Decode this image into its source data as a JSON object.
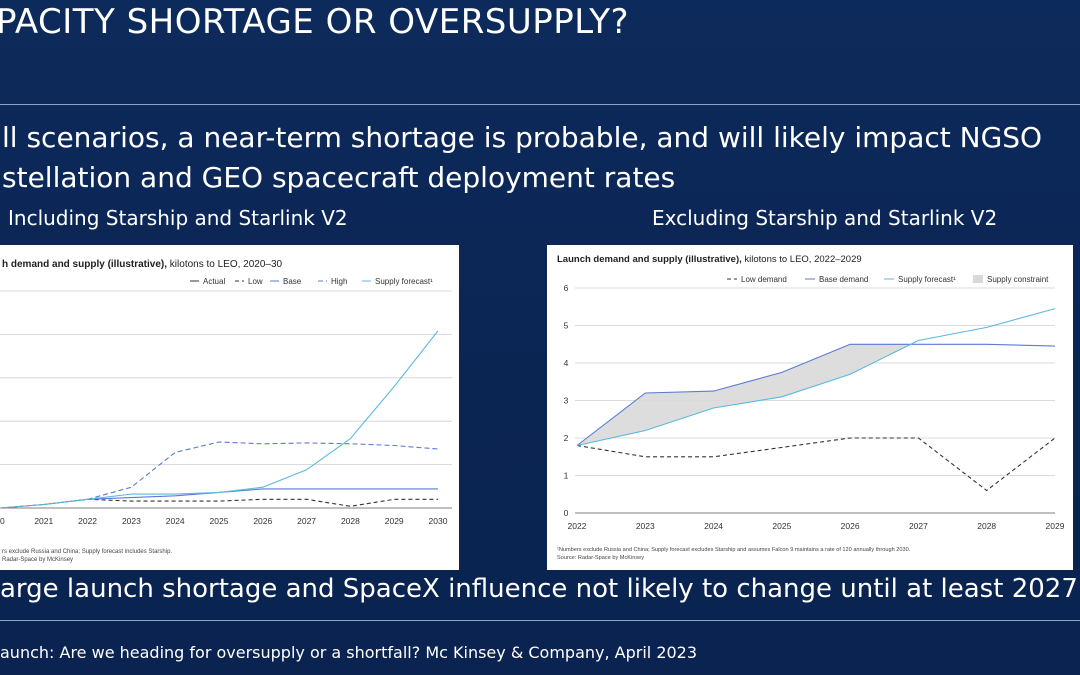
{
  "slide": {
    "title": "PACITY SHORTAGE OR OVERSUPPLY?",
    "subtitle_line1": "ll scenarios, a near-term shortage is probable, and will likely impact NGSO",
    "subtitle_line2": "stellation and GEO spacecraft deployment rates",
    "left_heading": "Including Starship and Starlink V2",
    "right_heading": "Excluding Starship and Starlink V2",
    "conclusion": "arge launch shortage and SpaceX influence not likely to change until at least 2027",
    "source": "aunch: Are we heading for oversupply or a shortfall? Mc Kinsey & Company, April 2023"
  },
  "chart_data": [
    {
      "type": "line",
      "title_bold": "h demand and supply (illustrative),",
      "title_rest": " kilotons to LEO, 2020–30",
      "legend": [
        "Actual",
        "Low",
        "Base",
        "High",
        "Supply forecast¹"
      ],
      "x": [
        "0",
        "2021",
        "2022",
        "2023",
        "2024",
        "2025",
        "2026",
        "2027",
        "2028",
        "2029",
        "2030"
      ],
      "ylim": [
        0,
        12.5
      ],
      "gridlines": [
        2.5,
        5,
        7.5,
        10
      ],
      "series": [
        {
          "name": "Actual",
          "color": "#333333",
          "dash": "",
          "values": [
            0.0,
            0.2,
            0.5,
            null,
            null,
            null,
            null,
            null,
            null,
            null,
            null
          ]
        },
        {
          "name": "Low",
          "color": "#333333",
          "dash": "4,3",
          "values": [
            null,
            null,
            0.5,
            0.4,
            0.4,
            0.4,
            0.5,
            0.5,
            0.1,
            0.5,
            0.5
          ]
        },
        {
          "name": "Base",
          "color": "#5a7bd6",
          "dash": "",
          "values": [
            null,
            null,
            0.5,
            0.6,
            0.7,
            0.9,
            1.1,
            1.1,
            1.1,
            1.1,
            1.1
          ]
        },
        {
          "name": "High",
          "color": "#5a7bd6",
          "dash": "5,3",
          "values": [
            null,
            null,
            0.5,
            1.2,
            3.2,
            3.8,
            3.7,
            3.75,
            3.7,
            3.6,
            3.4
          ]
        },
        {
          "name": "Supply forecast¹",
          "color": "#5bb8e0",
          "dash": "",
          "values": [
            0.0,
            0.2,
            0.5,
            0.8,
            0.8,
            0.9,
            1.2,
            2.2,
            4.0,
            7.0,
            10.2
          ]
        }
      ],
      "footnote1": "rs exclude Russia and China; Supply forecast includes Starship.",
      "footnote2": "Radar-Space by McKinsey"
    },
    {
      "type": "line",
      "title_bold": "Launch demand and supply (illustrative),",
      "title_rest": " kilotons to LEO, 2022–2029",
      "legend": [
        "Low demand",
        "Base demand",
        "Supply forecast¹",
        "Supply constraint"
      ],
      "x": [
        "2022",
        "2023",
        "2024",
        "2025",
        "2026",
        "2027",
        "2028",
        "2029"
      ],
      "ylim": [
        0,
        6
      ],
      "yticks": [
        0,
        1,
        2,
        3,
        4,
        5,
        6
      ],
      "series": [
        {
          "name": "Low demand",
          "color": "#333333",
          "dash": "4,3",
          "values": [
            1.8,
            1.5,
            1.5,
            1.75,
            2.0,
            2.0,
            0.6,
            2.0
          ]
        },
        {
          "name": "Base demand",
          "color": "#5a7bd6",
          "dash": "",
          "values": [
            1.8,
            3.2,
            3.25,
            3.75,
            4.5,
            4.5,
            4.5,
            4.45
          ]
        },
        {
          "name": "Supply forecast¹",
          "color": "#5bb8e0",
          "dash": "",
          "values": [
            1.8,
            2.2,
            2.8,
            3.1,
            3.7,
            4.6,
            4.95,
            5.45
          ]
        }
      ],
      "footnote1": "¹Numbers exclude Russia and China; Supply forecast excludes Starship and assumes Falcon 9 maintains a rate of 120 annually through 2030.",
      "footnote2": "Source: Radar-Space by McKinsey"
    }
  ]
}
